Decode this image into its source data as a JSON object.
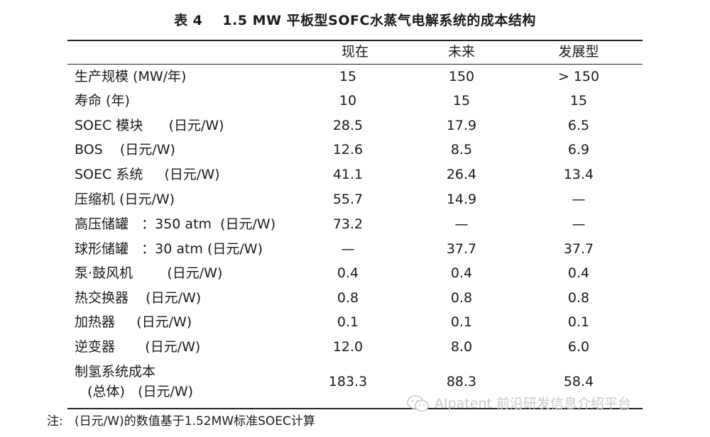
{
  "table": {
    "title_num": "表 4",
    "title_text": "1.5 MW 平板型SOFC水蒸气电解系统的成本结构",
    "columns": [
      "现在",
      "未来",
      "发展型"
    ],
    "rows": [
      {
        "label": "生产规模 (MW/年)",
        "values": [
          "15",
          "150",
          "> 150"
        ]
      },
      {
        "label": "寿命 (年)",
        "values": [
          "10",
          "15",
          "15"
        ]
      },
      {
        "label": "SOEC 模块      (日元/W)",
        "values": [
          "28.5",
          "17.9",
          "6.5"
        ]
      },
      {
        "label": "BOS    (日元/W)",
        "values": [
          "12.6",
          "8.5",
          "6.9"
        ]
      },
      {
        "label": "SOEC 系统     (日元/W)",
        "values": [
          "41.1",
          "26.4",
          "13.4"
        ]
      },
      {
        "label": "压缩机 (日元/W)",
        "values": [
          "55.7",
          "14.9",
          "—"
        ]
      },
      {
        "label": "高压储罐   ：350 atm  (日元/W)",
        "values": [
          "73.2",
          "—",
          "—"
        ]
      },
      {
        "label": "球形储罐   ：30 atm (日元/W)",
        "values": [
          "—",
          "37.7",
          "37.7"
        ]
      },
      {
        "label": "泵·鼓风机        (日元/W)",
        "values": [
          "0.4",
          "0.4",
          "0.4"
        ]
      },
      {
        "label": "热交换器    (日元/W)",
        "values": [
          "0.8",
          "0.8",
          "0.8"
        ]
      },
      {
        "label": "加热器     (日元/W)",
        "values": [
          "0.1",
          "0.1",
          "0.1"
        ]
      },
      {
        "label": "逆变器       (日元/W)",
        "values": [
          "12.0",
          "8.0",
          "6.0"
        ]
      },
      {
        "label": "制氢系统成本",
        "label2": "   (总体)   (日元/W)",
        "values": [
          "183.3",
          "88.3",
          "58.4"
        ]
      }
    ]
  },
  "note": "注:   (日元/W)的数值基于1.52MW标准SOEC计算",
  "watermark": {
    "text": "AIpatent 前沿研发信息介绍平台",
    "icon": "wechat-icon"
  }
}
